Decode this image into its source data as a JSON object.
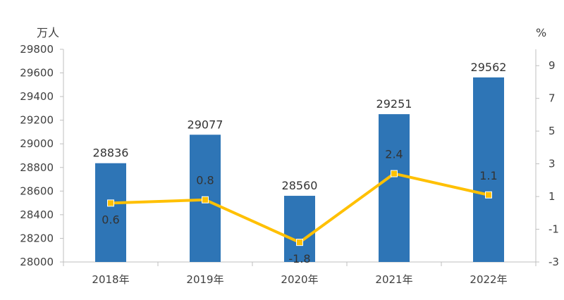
{
  "chart_data": {
    "type": "bar",
    "categories": [
      "2018年",
      "2019年",
      "2020年",
      "2021年",
      "2022年"
    ],
    "series": [
      {
        "type": "bar",
        "axis": "left",
        "color": "#2E75B6",
        "values": [
          28836,
          29077,
          28560,
          29251,
          29562
        ],
        "labels": [
          "28836",
          "29077",
          "28560",
          "29251",
          "29562"
        ]
      },
      {
        "type": "line",
        "axis": "right",
        "color": "#FFC000",
        "values": [
          0.6,
          0.8,
          -1.8,
          2.4,
          1.1
        ],
        "labels": [
          "0.6",
          "0.8",
          "-1.8",
          "2.4",
          "1.1"
        ]
      }
    ],
    "y_left": {
      "unit": "万人",
      "min": 28000,
      "max": 29800,
      "ticks": [
        "28000",
        "28200",
        "28400",
        "28600",
        "28800",
        "29000",
        "29200",
        "29400",
        "29600",
        "29800"
      ]
    },
    "y_right": {
      "unit": "%",
      "min": -3,
      "max": 10,
      "ticks": [
        "-3",
        "-1",
        "1",
        "3",
        "5",
        "7",
        "9"
      ]
    },
    "grid": false
  }
}
